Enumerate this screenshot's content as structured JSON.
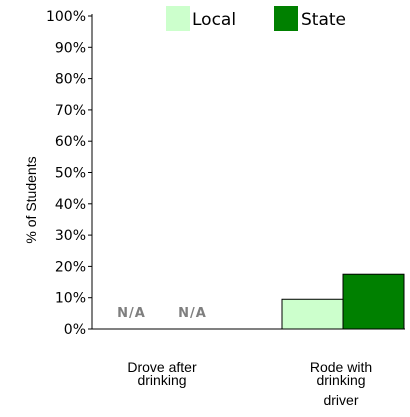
{
  "chart_data": {
    "type": "bar",
    "ylabel": "% of Students",
    "ylim": [
      0,
      100
    ],
    "yticks": [
      "0%",
      "10%",
      "20%",
      "30%",
      "40%",
      "50%",
      "60%",
      "70%",
      "80%",
      "90%",
      "100%"
    ],
    "categories": [
      [
        "Drove after",
        "drinking"
      ],
      [
        "Rode with",
        "drinking",
        "driver"
      ]
    ],
    "series": [
      {
        "name": "Local",
        "color": "#ccffcc",
        "values": [
          null,
          9.5
        ]
      },
      {
        "name": "State",
        "color": "#008000",
        "values": [
          null,
          17.5
        ]
      }
    ],
    "missing_label": "N/A",
    "legend": "top"
  }
}
